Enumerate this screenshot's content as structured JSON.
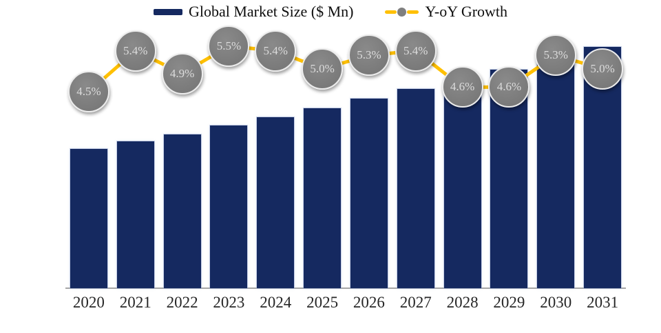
{
  "legend": {
    "market_size_label": "Global Market Size ($ Mn)",
    "growth_label": "Y-oY Growth"
  },
  "chart_data": {
    "type": "bar",
    "subtype": "combo-bar-line",
    "title": "",
    "categories": [
      "2020",
      "2021",
      "2022",
      "2023",
      "2024",
      "2025",
      "2026",
      "2027",
      "2028",
      "2029",
      "2030",
      "2031"
    ],
    "series": [
      {
        "name": "Global Market Size ($ Mn)",
        "type": "bar",
        "value_labels_visible": false,
        "estimated_relative_values": [
          100,
          105.4,
          110.6,
          116.6,
          122.9,
          129.1,
          135.9,
          143.3,
          149.9,
          156.8,
          165.1,
          173.3
        ]
      },
      {
        "name": "Y-oY Growth",
        "type": "line",
        "values_pct": [
          4.5,
          5.4,
          4.9,
          5.5,
          5.4,
          5.0,
          5.3,
          5.4,
          4.6,
          4.6,
          5.3,
          5.0
        ],
        "labels": [
          "4.5%",
          "5.4%",
          "4.9%",
          "5.5%",
          "5.4%",
          "5.0%",
          "5.3%",
          "5.4%",
          "4.6%",
          "4.6%",
          "5.3%",
          "5.0%"
        ]
      }
    ],
    "colors": {
      "bar": "#152960",
      "line": "#FFC000",
      "marker_fill": "#7f7f7f",
      "marker_text": "#dcdcdc",
      "axis": "#a6a6a6",
      "tick_text": "#262626"
    },
    "axes": {
      "x_visible": true,
      "y_left_visible": false,
      "y_right_visible": false
    },
    "gridlines": false,
    "legend_position": "top"
  }
}
